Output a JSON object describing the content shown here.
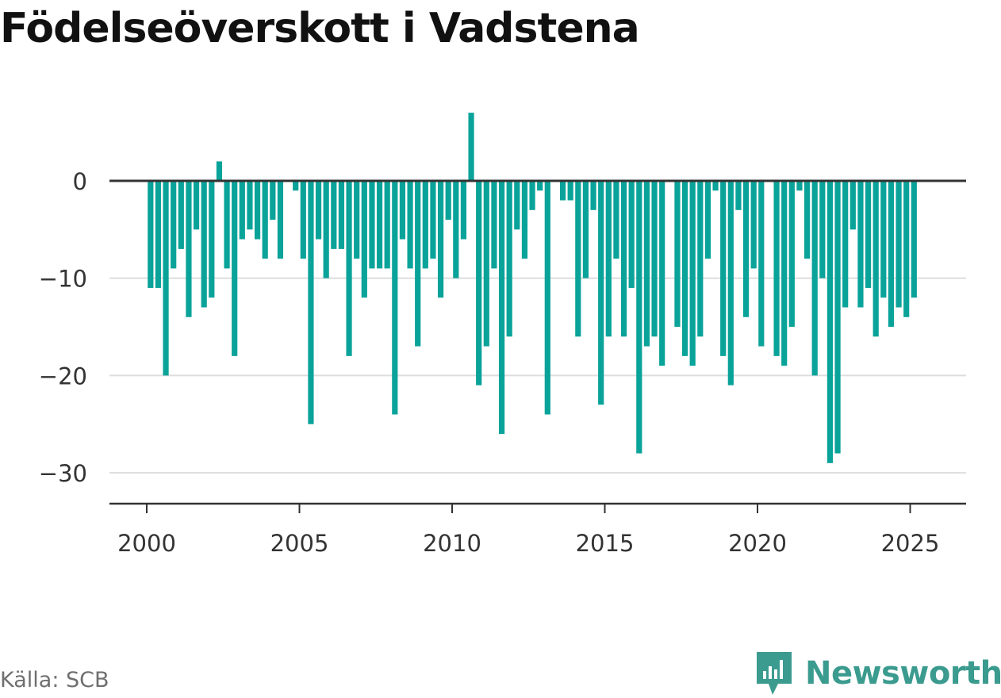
{
  "title": "Födelseöverskott i Vadstena",
  "source": "Källa: SCB",
  "brand": {
    "name": "Newsworthy",
    "icon": "newsworthy-logo-icon"
  },
  "colors": {
    "bar": "#0aa39a",
    "grid": "#dddddd",
    "axis": "#333333",
    "brand": "#3b9b8f"
  },
  "chart_data": {
    "type": "bar",
    "title": "Födelseöverskott i Vadstena",
    "xlabel": "",
    "ylabel": "",
    "frequency": "quarterly",
    "start": "2000 Q1",
    "grid": true,
    "ylim": [
      -33,
      9
    ],
    "xlim": [
      2000,
      2026
    ],
    "yticks": [
      0,
      -10,
      -20,
      -30
    ],
    "ytick_labels": [
      "0",
      "−10",
      "−20",
      "−30"
    ],
    "xticks": [
      "2000",
      "2005",
      "2010",
      "2015",
      "2020",
      "2025"
    ],
    "values": [
      -11,
      -11,
      -20,
      -9,
      -7,
      -14,
      -5,
      -13,
      -12,
      2,
      -9,
      -18,
      -6,
      -5,
      -6,
      -8,
      -4,
      -8,
      0,
      -1,
      -8,
      -25,
      -6,
      -10,
      -7,
      -7,
      -18,
      -8,
      -12,
      -9,
      -9,
      -9,
      -24,
      -6,
      -9,
      -17,
      -9,
      -8,
      -12,
      -4,
      -10,
      -6,
      7,
      -21,
      -17,
      -9,
      -26,
      -16,
      -5,
      -8,
      -3,
      -1,
      -24,
      0,
      -2,
      -2,
      -16,
      -10,
      -3,
      -23,
      -16,
      -8,
      -16,
      -11,
      -28,
      -17,
      -16,
      -19,
      0,
      -15,
      -18,
      -19,
      -16,
      -8,
      -1,
      -18,
      -21,
      -3,
      -14,
      -9,
      -17,
      0,
      -18,
      -19,
      -15,
      -1,
      -8,
      -20,
      -10,
      -29,
      -28,
      -13,
      -5,
      -13,
      -11,
      -16,
      -12,
      -15,
      -13,
      -14,
      -12
    ]
  }
}
